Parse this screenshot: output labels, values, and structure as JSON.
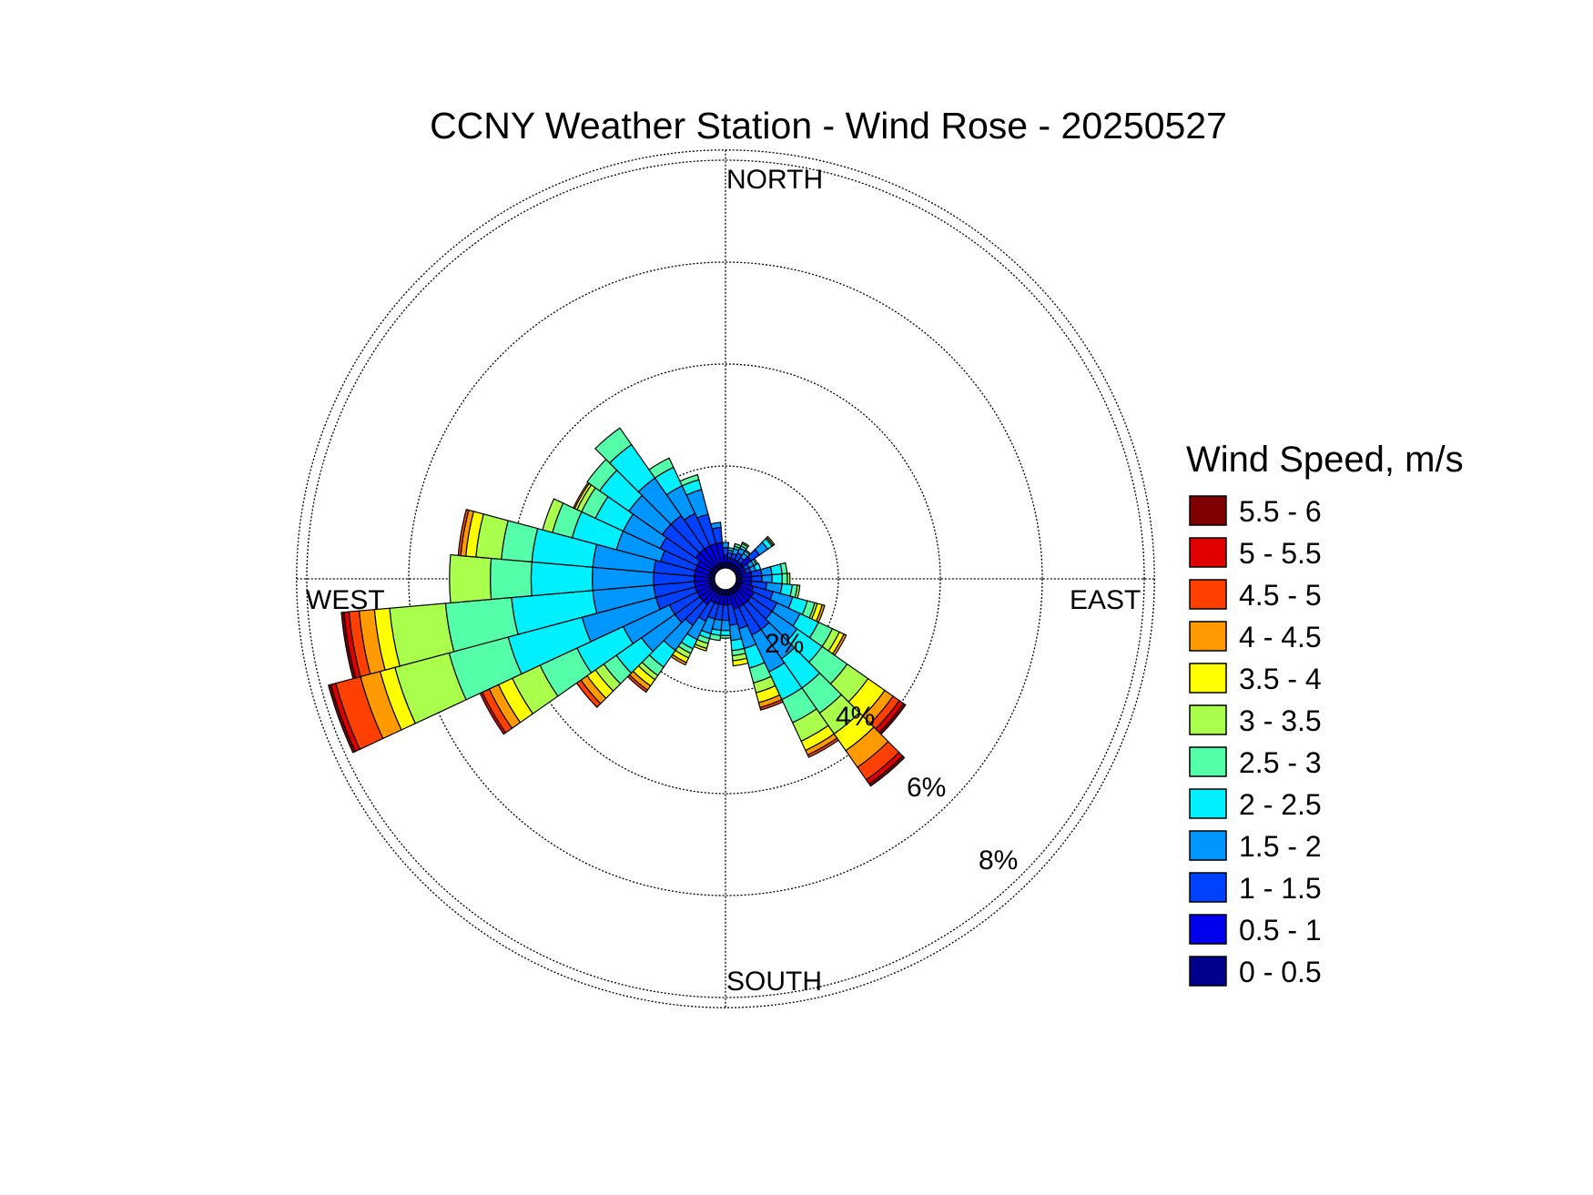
{
  "chart_data": {
    "type": "polar-bar",
    "title": "CCNY Weather Station - Wind Rose - 20250527",
    "compass_labels": {
      "north": "NORTH",
      "east": "EAST",
      "south": "SOUTH",
      "west": "WEST"
    },
    "ring_labels": [
      "2%",
      "4%",
      "6%",
      "8%"
    ],
    "rings_percent": [
      2,
      4,
      6,
      8
    ],
    "legend": {
      "title": "Wind Speed, m/s",
      "placement": "right",
      "bins": [
        {
          "label": "5.5 - 6",
          "color": "#800000"
        },
        {
          "label": "5 - 5.5",
          "color": "#e00000"
        },
        {
          "label": "4.5 - 5",
          "color": "#ff4000"
        },
        {
          "label": "4 - 4.5",
          "color": "#ff9a00"
        },
        {
          "label": "3.5 - 4",
          "color": "#ffff00"
        },
        {
          "label": "3 - 3.5",
          "color": "#aaff4d"
        },
        {
          "label": "2.5 - 3",
          "color": "#55ffaa"
        },
        {
          "label": "2 - 2.5",
          "color": "#00f0ff"
        },
        {
          "label": "1.5 - 2",
          "color": "#0096ff"
        },
        {
          "label": "1 - 1.5",
          "color": "#0040ff"
        },
        {
          "label": "0.5 - 1",
          "color": "#0000ec"
        },
        {
          "label": "0 - 0.5",
          "color": "#00008c"
        }
      ]
    },
    "sector_width_deg": 10,
    "bin_order": "0-0.5 … 5.5-6 (inner to outer, cumulative %)",
    "sectors": [
      {
        "dir": 0,
        "freq": [
          0.1,
          0.15,
          0.15,
          0.1
        ]
      },
      {
        "dir": 10,
        "freq": [
          0.1,
          0.1,
          0.1,
          0.05,
          0.05
        ]
      },
      {
        "dir": 20,
        "freq": [
          0.1,
          0.1,
          0.1,
          0.1,
          0.05,
          0.05
        ]
      },
      {
        "dir": 30,
        "freq": [
          0.1,
          0.1,
          0.15,
          0.1,
          0.05,
          0.05,
          0.03
        ]
      },
      {
        "dir": 40,
        "freq": [
          0.1,
          0.1,
          0.1,
          0.1,
          0.05,
          0.03
        ]
      },
      {
        "dir": 50,
        "freq": [
          0.2,
          0.2,
          0.2,
          0.2,
          0.1,
          0.03,
          0.03
        ]
      },
      {
        "dir": 60,
        "freq": [
          0.1,
          0.1,
          0.1,
          0.1,
          0.05,
          0.03
        ]
      },
      {
        "dir": 70,
        "freq": [
          0.1,
          0.1,
          0.1,
          0.1,
          0.1
        ]
      },
      {
        "dir": 80,
        "freq": [
          0.1,
          0.2,
          0.2,
          0.2,
          0.2,
          0.1
        ]
      },
      {
        "dir": 90,
        "freq": [
          0.1,
          0.2,
          0.2,
          0.2,
          0.2,
          0.1,
          0.05
        ]
      },
      {
        "dir": 100,
        "freq": [
          0.1,
          0.2,
          0.3,
          0.3,
          0.2,
          0.1,
          0.05
        ]
      },
      {
        "dir": 110,
        "freq": [
          0.1,
          0.25,
          0.4,
          0.4,
          0.3,
          0.15,
          0.05,
          0.1,
          0.05
        ]
      },
      {
        "dir": 120,
        "freq": [
          0.1,
          0.3,
          0.5,
          0.5,
          0.4,
          0.3,
          0.15,
          0.1,
          0.05
        ]
      },
      {
        "dir": 130,
        "freq": [
          0.1,
          0.3,
          0.5,
          0.6,
          0.6,
          0.6,
          0.5,
          0.4,
          0.2,
          0.15,
          0.1,
          0.05
        ]
      },
      {
        "dir": 140,
        "freq": [
          0.1,
          0.3,
          0.6,
          0.7,
          0.7,
          0.6,
          0.5,
          0.4,
          0.4,
          0.3,
          0.1,
          0.05
        ]
      },
      {
        "dir": 150,
        "freq": [
          0.1,
          0.3,
          0.6,
          0.8,
          0.6,
          0.5,
          0.4,
          0.2,
          0.1,
          0.05
        ]
      },
      {
        "dir": 160,
        "freq": [
          0.1,
          0.3,
          0.4,
          0.4,
          0.4,
          0.3,
          0.2,
          0.2,
          0.1,
          0.05
        ]
      },
      {
        "dir": 170,
        "freq": [
          0.1,
          0.2,
          0.4,
          0.3,
          0.2,
          0.1,
          0.1,
          0.1
        ]
      },
      {
        "dir": 180,
        "freq": [
          0.1,
          0.2,
          0.3,
          0.2,
          0.1,
          0.05
        ]
      },
      {
        "dir": 190,
        "freq": [
          0.1,
          0.2,
          0.3,
          0.2,
          0.1,
          0.1
        ]
      },
      {
        "dir": 200,
        "freq": [
          0.1,
          0.2,
          0.3,
          0.3,
          0.1,
          0.1,
          0.1,
          0.05
        ]
      },
      {
        "dir": 210,
        "freq": [
          0.1,
          0.2,
          0.4,
          0.4,
          0.2,
          0.1,
          0.1,
          0.1,
          0.05
        ]
      },
      {
        "dir": 220,
        "freq": [
          0.1,
          0.3,
          0.5,
          0.6,
          0.4,
          0.2,
          0.1,
          0.15,
          0.1,
          0.05
        ]
      },
      {
        "dir": 230,
        "freq": [
          0.1,
          0.3,
          0.6,
          0.8,
          0.6,
          0.3,
          0.2,
          0.2,
          0.15,
          0.1
        ]
      },
      {
        "dir": 240,
        "freq": [
          0.1,
          0.3,
          0.6,
          1.0,
          1.0,
          0.8,
          0.6,
          0.3,
          0.2,
          0.15,
          0.05
        ]
      },
      {
        "dir": 250,
        "freq": [
          0.1,
          0.3,
          0.8,
          1.5,
          1.5,
          1.2,
          1.1,
          0.3,
          0.4,
          0.5,
          0.1,
          0.05
        ]
      },
      {
        "dir": 260,
        "freq": [
          0.1,
          0.3,
          0.8,
          1.2,
          1.6,
          1.3,
          1.1,
          0.3,
          0.3,
          0.2,
          0.1,
          0.05
        ]
      },
      {
        "dir": 270,
        "freq": [
          0.1,
          0.3,
          0.8,
          1.2,
          1.2,
          0.8,
          0.8
        ]
      },
      {
        "dir": 280,
        "freq": [
          0.1,
          0.3,
          0.8,
          1.2,
          1.2,
          0.6,
          0.5,
          0.2,
          0.1,
          0.05
        ]
      },
      {
        "dir": 290,
        "freq": [
          0.1,
          0.3,
          0.7,
          0.9,
          0.9,
          0.4,
          0.2
        ]
      },
      {
        "dir": 300,
        "freq": [
          0.1,
          0.3,
          0.8,
          0.8,
          0.6,
          0.3,
          0.1,
          0.05,
          0.03
        ]
      },
      {
        "dir": 310,
        "freq": [
          0.1,
          0.4,
          0.8,
          0.8,
          0.7,
          0.3
        ]
      },
      {
        "dir": 320,
        "freq": [
          0.1,
          0.4,
          0.8,
          0.9,
          0.8,
          0.4
        ]
      },
      {
        "dir": 330,
        "freq": [
          0.1,
          0.4,
          0.7,
          0.6,
          0.4,
          0.2
        ]
      },
      {
        "dir": 340,
        "freq": [
          0.1,
          0.4,
          0.6,
          0.5,
          0.2,
          0.1
        ]
      },
      {
        "dir": 350,
        "freq": [
          0.1,
          0.4,
          0.3,
          0.1
        ]
      }
    ]
  }
}
